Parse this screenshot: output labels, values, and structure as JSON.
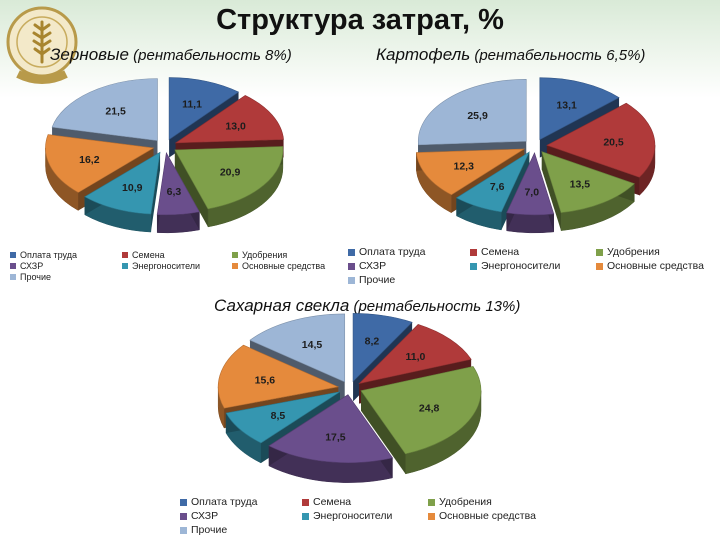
{
  "page": {
    "title": "Структура затрат, %",
    "logo_text": [
      "ЗАТАРСТАН",
      "МИНСЕЛЬХОЗПРОД"
    ]
  },
  "colors": {
    "Оплата труда": "#3f6aa6",
    "Семена": "#b03a3a",
    "Удобрения": "#7fa04a",
    "СХЗР": "#6a4e8c",
    "Энергоносители": "#3596b0",
    "Основные средства": "#e58a3c",
    "Прочие": "#9db6d6"
  },
  "chart_data": [
    {
      "type": "pie",
      "title": "Зерновые",
      "subtitle": "(рентабельность 8%)",
      "legend_entries": [
        "Оплата труда",
        "Семена",
        "Удобрения",
        "СХЗР",
        "Энергоносители",
        "Основные средства",
        "Прочие"
      ],
      "slices": [
        {
          "category": "Оплата труда",
          "value": 11.1
        },
        {
          "category": "Семена",
          "value": 13.0
        },
        {
          "category": "Удобрения",
          "value": 20.9
        },
        {
          "category": "СХЗР",
          "value": 6.3
        },
        {
          "category": "Энергоносители",
          "value": 10.9
        },
        {
          "category": "Основные средства",
          "value": 16.2
        },
        {
          "category": "Прочие",
          "value": 21.5
        }
      ],
      "labels": [
        "11,1",
        "13,0",
        "20,9",
        "6,3",
        "10,9",
        "16,2",
        "21,5"
      ]
    },
    {
      "type": "pie",
      "title": "Картофель",
      "subtitle": "(рентабельность 6,5%)",
      "legend_entries": [
        "Оплата труда",
        "Семена",
        "Удобрения",
        "СХЗР",
        "Энергоносители",
        "Основные средства",
        "Прочие"
      ],
      "legend_labels": [
        "Оплата труда",
        "Семена",
        "Удобрения",
        "СХЗР",
        "Энергоносители",
        "Основные средства",
        "Прочие"
      ],
      "slices": [
        {
          "category": "Оплата труда",
          "value": 13.1
        },
        {
          "category": "Семена",
          "value": 20.5
        },
        {
          "category": "Удобрения",
          "value": 13.5
        },
        {
          "category": "СХЗР",
          "value": 7.0
        },
        {
          "category": "Энергоносители",
          "value": 7.6
        },
        {
          "category": "Основные средства",
          "value": 12.3
        },
        {
          "category": "Прочие",
          "value": 25.9
        }
      ],
      "labels": [
        "13,1",
        "20,5",
        "13,5",
        "7,0",
        "7,6",
        "12,3",
        "25,9"
      ]
    },
    {
      "type": "pie",
      "title": "Сахарная свекла",
      "subtitle": "(рентабельность 13%)",
      "legend_entries": [
        "Оплата труда",
        "Семена",
        "Удобрения",
        "СХЗР",
        "Энергоносители",
        "Основные средства",
        "Прочие"
      ],
      "slices": [
        {
          "category": "Оплата труда",
          "value": 8.2
        },
        {
          "category": "Семена",
          "value": 11.0
        },
        {
          "category": "Удобрения",
          "value": 24.8
        },
        {
          "category": "СХЗР",
          "value": 17.5
        },
        {
          "category": "Энергоносители",
          "value": 8.5
        },
        {
          "category": "Основные средства",
          "value": 15.6
        },
        {
          "category": "Прочие",
          "value": 14.5
        }
      ],
      "labels": [
        "8,2",
        "11,0",
        "24,8",
        "17,5",
        "8,5",
        "15,6",
        "14,5"
      ]
    }
  ]
}
